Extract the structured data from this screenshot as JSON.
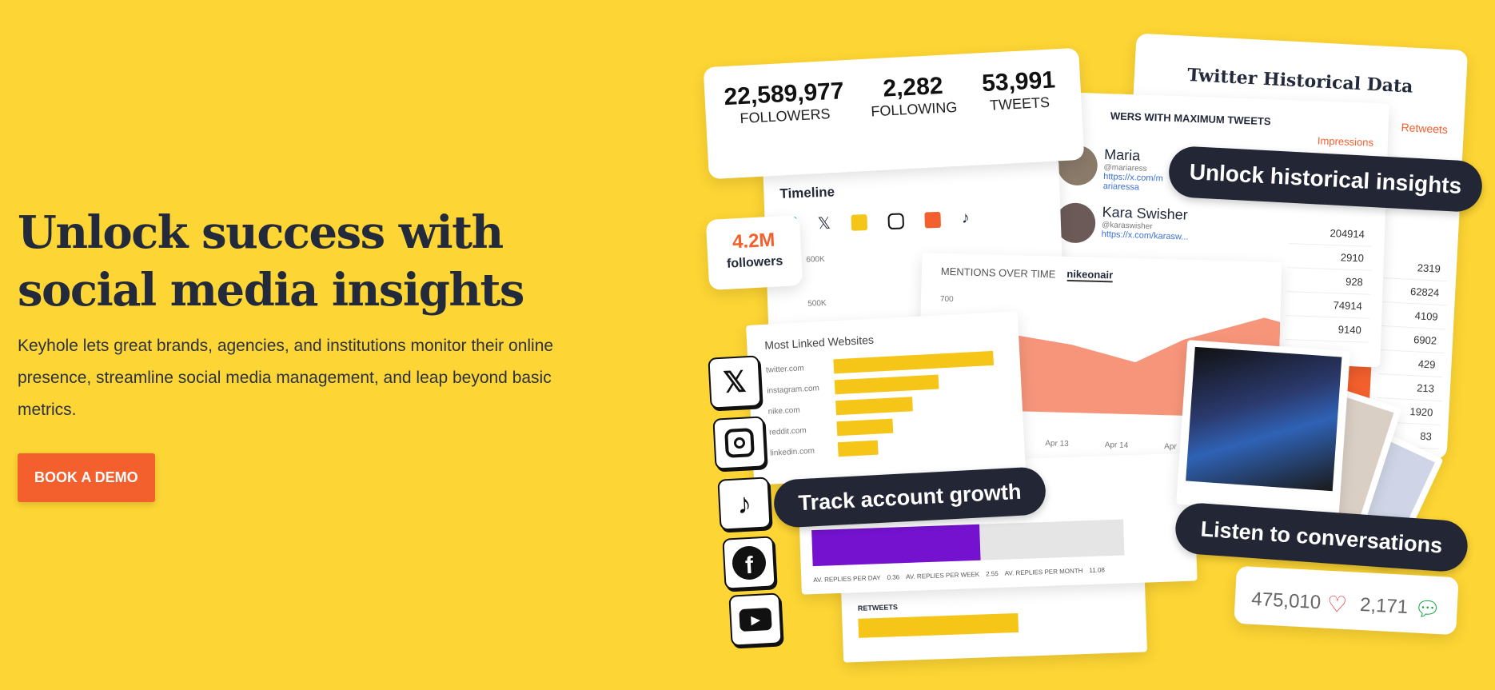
{
  "hero": {
    "title_line1": "Unlock success with",
    "title_line2": "social media insights",
    "description": "Keyhole lets great brands, agencies, and institutions monitor their online presence, streamline social media management, and leap beyond basic metrics.",
    "cta": "BOOK A DEMO"
  },
  "colors": {
    "background": "#fdd534",
    "cta": "#f4602d",
    "heading": "#232a3b",
    "pill": "#232634"
  },
  "stats": [
    {
      "value": "22,589,977",
      "label": "FOLLOWERS"
    },
    {
      "value": "2,282",
      "label": "FOLLOWING"
    },
    {
      "value": "53,991",
      "label": "TWEETS"
    }
  ],
  "historical": {
    "title": "Twitter Historical Data",
    "subtitle": "WERS WITH MAXIMUM TWEETS",
    "col_impressions": "Impressions",
    "col_retweets": "Retweets",
    "impressions": [
      "204914",
      "2910",
      "928",
      "74914",
      "9140"
    ],
    "retweets": [
      "2319",
      "62824",
      "4109",
      "6902",
      "429",
      "213",
      "1920",
      "83"
    ]
  },
  "influencers": [
    {
      "name": "Maria",
      "handle": "@mariaress",
      "url": "https://x.com/mariaressa"
    },
    {
      "name": "Kara Swisher",
      "handle": "@karaswisher",
      "url": "https://x.com/karasw..."
    }
  ],
  "timeline": {
    "title": "Timeline",
    "y_labels": [
      "600K",
      "500K"
    ]
  },
  "followers_badge": {
    "value": "4.2M",
    "label": "followers"
  },
  "mentions": {
    "title": "MENTIONS OVER TIME",
    "tab": "nikeonair",
    "y_label": "700",
    "x_labels": [
      "Apr 13",
      "Apr 14",
      "Apr"
    ]
  },
  "linked": {
    "title": "Most Linked Websites",
    "sites": [
      {
        "name": "twitter.com",
        "value": 100
      },
      {
        "name": "instagram.com",
        "value": 65
      },
      {
        "name": "nike.com",
        "value": 48
      },
      {
        "name": "reddit.com",
        "value": 35
      },
      {
        "name": "linkedin.com",
        "value": 25
      }
    ]
  },
  "replies": {
    "label1": "AV. REPLIES PER DAY",
    "v1": "0.36",
    "label2": "AV. REPLIES PER WEEK",
    "v2": "2.55",
    "label3": "AV. REPLIES PER MONTH",
    "v3": "11.08",
    "retweets": "RETWEETS"
  },
  "pills": {
    "historical": "Unlock historical insights",
    "growth": "Track account growth",
    "listen": "Listen to conversations"
  },
  "engagement": {
    "likes": "475,010",
    "comments": "2,171"
  },
  "social_icons": [
    "x-icon",
    "instagram-icon",
    "tiktok-icon",
    "facebook-icon",
    "youtube-icon"
  ]
}
